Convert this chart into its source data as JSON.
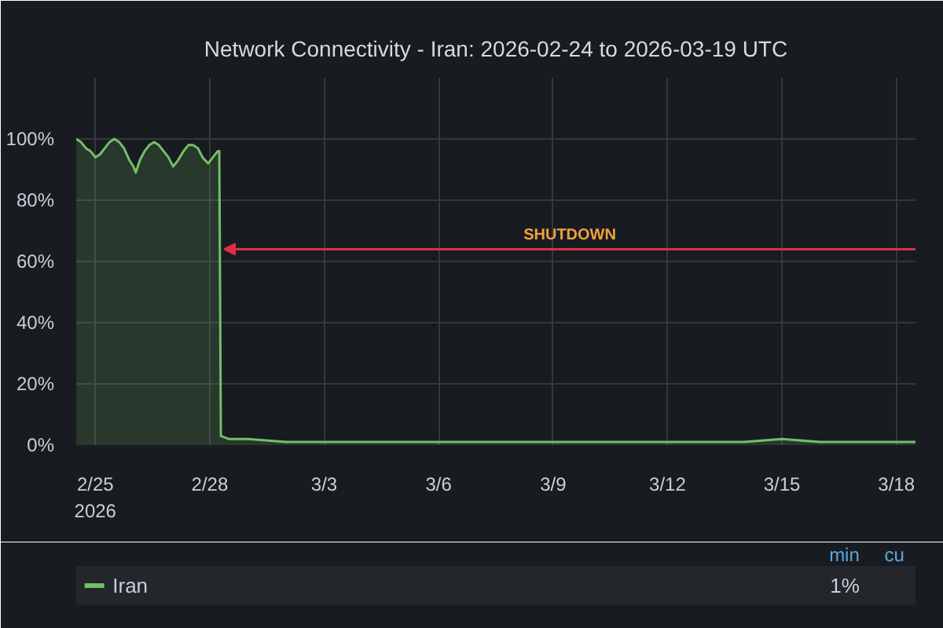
{
  "chart_data": {
    "type": "area",
    "title": "Network Connectivity - Iran: 2026-02-24 to 2026-03-19 UTC",
    "xlim": [
      "2026-02-24T12:00",
      "2026-03-18T12:00"
    ],
    "xticks": [
      {
        "value": "2026-02-25",
        "label": "2/25\n2026"
      },
      {
        "value": "2026-02-28",
        "label": "2/28"
      },
      {
        "value": "2026-03-03",
        "label": "3/3"
      },
      {
        "value": "2026-03-06",
        "label": "3/6"
      },
      {
        "value": "2026-03-09",
        "label": "3/9"
      },
      {
        "value": "2026-03-12",
        "label": "3/12"
      },
      {
        "value": "2026-03-15",
        "label": "3/15"
      },
      {
        "value": "2026-03-18",
        "label": "3/18"
      }
    ],
    "ylim": [
      0,
      120
    ],
    "yticks": [
      {
        "value": 0,
        "label": "0%"
      },
      {
        "value": 20,
        "label": "20%"
      },
      {
        "value": 40,
        "label": "40%"
      },
      {
        "value": 60,
        "label": "60%"
      },
      {
        "value": 80,
        "label": "80%"
      },
      {
        "value": 100,
        "label": "100%"
      },
      {
        "value": 120,
        "label": null
      }
    ],
    "grid": true,
    "legend": "bottom",
    "series": [
      {
        "name": "Iran",
        "color": "#73bf69",
        "x": [
          "2026-02-24T12:00",
          "2026-02-24T15:00",
          "2026-02-24T18:00",
          "2026-02-24T21:00",
          "2026-02-25T00:00",
          "2026-02-25T03:00",
          "2026-02-25T06:00",
          "2026-02-25T09:00",
          "2026-02-25T12:00",
          "2026-02-25T15:00",
          "2026-02-25T18:00",
          "2026-02-25T21:30",
          "2026-02-26T00:00",
          "2026-02-26T01:30",
          "2026-02-26T04:00",
          "2026-02-26T07:00",
          "2026-02-26T10:00",
          "2026-02-26T13:00",
          "2026-02-26T16:00",
          "2026-02-26T19:00",
          "2026-02-26T22:00",
          "2026-02-27T01:00",
          "2026-02-27T04:00",
          "2026-02-27T07:30",
          "2026-02-27T10:30",
          "2026-02-27T13:30",
          "2026-02-27T16:30",
          "2026-02-27T19:30",
          "2026-02-27T23:00",
          "2026-02-28T02:00",
          "2026-02-28T05:00",
          "2026-02-28T06:00",
          "2026-02-28T07:00",
          "2026-02-28T12:00",
          "2026-03-01T00:00",
          "2026-03-02T00:00",
          "2026-03-04T00:00",
          "2026-03-06T00:00",
          "2026-03-08T00:00",
          "2026-03-10T00:00",
          "2026-03-12T00:00",
          "2026-03-14T00:00",
          "2026-03-15T00:00",
          "2026-03-16T00:00",
          "2026-03-18T00:00",
          "2026-03-18T12:00"
        ],
        "values": [
          100,
          99,
          97,
          96,
          94,
          95,
          97,
          99,
          100,
          99,
          97,
          93,
          91,
          89,
          93,
          96,
          98,
          99,
          98,
          96,
          94,
          91,
          93,
          96,
          98,
          98,
          97,
          94,
          92,
          94,
          96,
          96,
          3,
          2,
          2,
          1,
          1,
          1,
          1,
          1,
          1,
          1,
          2,
          1,
          1,
          1
        ]
      }
    ],
    "annotations": [
      {
        "text": "SHUTDOWN",
        "x": "2026-02-28T09:00",
        "y": 64
      },
      "min",
      "cu",
      "1%"
    ]
  }
}
